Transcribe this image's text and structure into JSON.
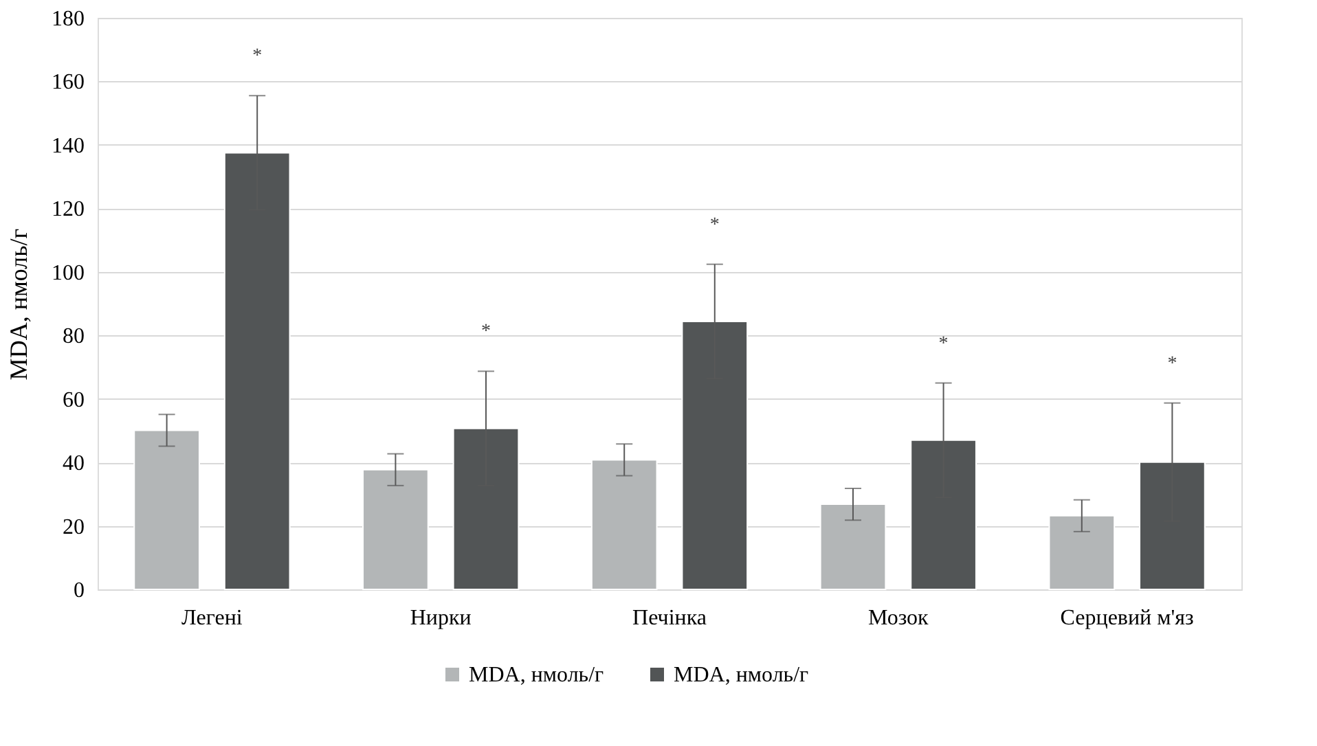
{
  "chart_data": {
    "type": "bar",
    "ylabel": "MDA, нмоль/г",
    "categories": [
      "Легені",
      "Нирки",
      "Печінка",
      "Мозок",
      "Серцевий м'яз"
    ],
    "series": [
      {
        "name": "MDA, нмоль/г",
        "color": "#b3b6b7",
        "values": [
          50.1,
          37.7,
          40.8,
          26.8,
          23.2
        ],
        "errors": [
          5,
          5,
          5,
          5,
          5
        ]
      },
      {
        "name": "MDA, нмоль/г",
        "color": "#525556",
        "values": [
          137.5,
          50.7,
          84.4,
          47.0,
          40.1
        ],
        "errors": [
          18,
          18,
          18,
          18,
          18.6
        ]
      }
    ],
    "ylim": [
      0,
      180
    ],
    "yticks": [
      0,
      20,
      40,
      60,
      80,
      100,
      120,
      140,
      160,
      180
    ],
    "grid": "y",
    "legend": "bottom",
    "annotations": [
      "*",
      "*",
      "*",
      "*",
      "*"
    ]
  }
}
